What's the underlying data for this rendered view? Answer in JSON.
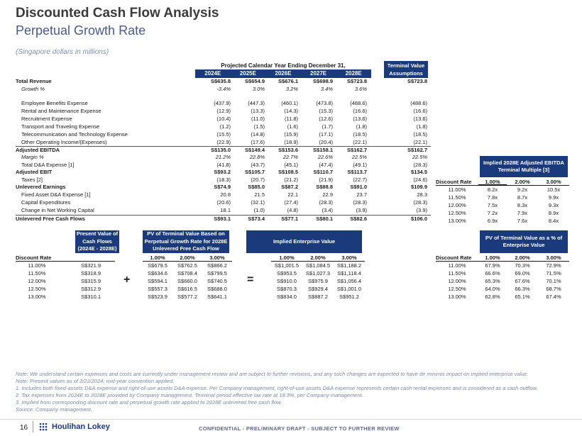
{
  "title": "Discounted Cash Flow Analysis",
  "subtitle": "Perpetual Growth Rate",
  "unit_note": "(Singapore dollars in millions)",
  "projection_header": "Projected Calendar Year Ending December 31,",
  "years": [
    "2024E",
    "2025E",
    "2026E",
    "2027E",
    "2028E"
  ],
  "tv_header": "Terminal Value Assumptions",
  "rows": [
    {
      "label": "Total Revenue",
      "vals": [
        "S$635.8",
        "S$654.9",
        "S$676.1",
        "S$698.9",
        "S$723.8"
      ],
      "tv": "S$723.8"
    },
    {
      "label": "Growth %",
      "vals": [
        "-3.4%",
        "3.0%",
        "3.2%",
        "3.4%",
        "3.6%"
      ],
      "tv": ""
    },
    {
      "label": "Employee Benefits Expense",
      "vals": [
        "(437.9)",
        "(447.3)",
        "(460.1)",
        "(473.8)",
        "(488.6)"
      ],
      "tv": "(488.6)"
    },
    {
      "label": "Rental and Maintenance Expense",
      "vals": [
        "(12.9)",
        "(13.3)",
        "(14.3)",
        "(15.3)",
        "(16.6)"
      ],
      "tv": "(16.6)"
    },
    {
      "label": "Recruitment Expense",
      "vals": [
        "(10.4)",
        "(11.0)",
        "(11.8)",
        "(12.6)",
        "(13.6)"
      ],
      "tv": "(13.6)"
    },
    {
      "label": "Transport and Traveling Expense",
      "vals": [
        "(1.2)",
        "(1.5)",
        "(1.6)",
        "(1.7)",
        "(1.8)"
      ],
      "tv": "(1.8)"
    },
    {
      "label": "Telecommunication and Technology Expense",
      "vals": [
        "(15.5)",
        "(14.8)",
        "(15.9)",
        "(17.1)",
        "(18.5)"
      ],
      "tv": "(18.5)"
    },
    {
      "label": "Other Operating Income/(Expenses)",
      "vals": [
        "(22.9)",
        "(17.6)",
        "(18.9)",
        "(20.4)",
        "(22.1)"
      ],
      "tv": "(22.1)"
    },
    {
      "label": "Adjusted EBITDA",
      "vals": [
        "S$135.0",
        "S$149.4",
        "S$153.6",
        "S$158.1",
        "S$162.7"
      ],
      "tv": "S$162.7"
    },
    {
      "label": "Margin %",
      "vals": [
        "21.2%",
        "22.8%",
        "22.7%",
        "22.6%",
        "22.5%"
      ],
      "tv": "22.5%"
    },
    {
      "label": "Total D&A Expense [1]",
      "vals": [
        "(41.8)",
        "(43.7)",
        "(45.1)",
        "(47.4)",
        "(49.1)"
      ],
      "tv": "(28.3)"
    },
    {
      "label": "Adjusted EBIT",
      "vals": [
        "S$93.2",
        "S$105.7",
        "S$108.5",
        "S$110.7",
        "S$113.7"
      ],
      "tv": "$134.5"
    },
    {
      "label": "Taxes [2]",
      "vals": [
        "(18.3)",
        "(20.7)",
        "(21.2)",
        "(21.9)",
        "(22.7)"
      ],
      "tv": "(24.6)"
    },
    {
      "label": "Unlevered Earnings",
      "vals": [
        "S$74.9",
        "S$85.0",
        "S$87.2",
        "S$88.8",
        "S$91.0"
      ],
      "tv": "$109.9"
    },
    {
      "label": "Fixed Asset D&A Expense [1]",
      "vals": [
        "20.8",
        "21.5",
        "22.1",
        "22.9",
        "23.7"
      ],
      "tv": "28.3"
    },
    {
      "label": "Capital Expenditures",
      "vals": [
        "(20.6)",
        "(32.1)",
        "(27.4)",
        "(28.3)",
        "(28.3)"
      ],
      "tv": "(28.3)"
    },
    {
      "label": "Change in Net Working Capital",
      "vals": [
        "18.1",
        "(1.0)",
        "(4.8)",
        "(3.4)",
        "(3.9)"
      ],
      "tv": "(3.9)"
    },
    {
      "label": "Unlevered Free Cash Flows",
      "vals": [
        "S$93.1",
        "S$73.4",
        "S$77.1",
        "S$80.1",
        "S$82.6"
      ],
      "tv": "$106.0"
    }
  ],
  "implied_multiple": {
    "header": "Implied 2028E Adjusted EBITDA Terminal Multiple [3]",
    "label": "Discount Rate",
    "cols": [
      "1.00%",
      "2.00%",
      "3.00%"
    ],
    "rates": [
      "11.00%",
      "11.50%",
      "12.00%",
      "12.50%",
      "13.00%"
    ],
    "values": [
      [
        "8.2x",
        "9.2x",
        "10.5x"
      ],
      [
        "7.8x",
        "8.7x",
        "9.9x"
      ],
      [
        "7.5x",
        "8.3x",
        "9.3x"
      ],
      [
        "7.2x",
        "7.9x",
        "8.9x"
      ],
      [
        "6.9x",
        "7.6x",
        "8.4x"
      ]
    ]
  },
  "pv_cf": {
    "header": "Present Value of Cash Flows (2024E - 2028E)",
    "label": "Discount Rate",
    "rates": [
      "11.00%",
      "11.50%",
      "12.00%",
      "12.50%",
      "13.00%"
    ],
    "values": [
      "S$321.9",
      "S$318.9",
      "S$315.9",
      "S$312.9",
      "S$310.1"
    ]
  },
  "pv_tv": {
    "header": "PV of Terminal Value Based on Perpetual Growth Rate for 2028E Unlevered Free Cash Flow",
    "cols": [
      "1.00%",
      "2.00%",
      "3.00%"
    ],
    "values": [
      [
        "S$679.5",
        "S$762.5",
        "S$866.2"
      ],
      [
        "S$634.6",
        "S$708.4",
        "S$799.5"
      ],
      [
        "S$594.1",
        "S$660.0",
        "S$740.5"
      ],
      [
        "S$557.3",
        "S$616.5",
        "S$688.0"
      ],
      [
        "S$523.9",
        "S$577.2",
        "S$641.1"
      ]
    ]
  },
  "iev": {
    "header": "Implied Enterprise Value",
    "cols": [
      "1.00%",
      "2.00%",
      "3.00%"
    ],
    "values": [
      [
        "S$1,001.5",
        "S$1,084.5",
        "S$1,188.2"
      ],
      [
        "S$953.5",
        "S$1,027.3",
        "S$1,118.4"
      ],
      [
        "S$910.0",
        "S$975.9",
        "S$1,056.4"
      ],
      [
        "S$870.3",
        "S$929.4",
        "S$1,001.0"
      ],
      [
        "S$834.0",
        "S$887.2",
        "S$951.2"
      ]
    ]
  },
  "pv_tv_pct": {
    "header": "PV of Terminal Value as a % of Enterprise Value",
    "label": "Discount Rate",
    "cols": [
      "1.00%",
      "2.00%",
      "3.00%"
    ],
    "rates": [
      "11.00%",
      "11.50%",
      "12.00%",
      "12.50%",
      "13.00%"
    ],
    "values": [
      [
        "67.9%",
        "70.3%",
        "72.9%"
      ],
      [
        "66.6%",
        "69.0%",
        "71.5%"
      ],
      [
        "65.3%",
        "67.6%",
        "70.1%"
      ],
      [
        "64.0%",
        "66.3%",
        "68.7%"
      ],
      [
        "62.8%",
        "65.1%",
        "67.4%"
      ]
    ]
  },
  "ops": {
    "plus": "+",
    "equals": "="
  },
  "notes": [
    "Note: We understand certain expenses and costs are currently under management review and are subject to further revisions, and any such changes are expected to have de minimis impact on implied enterprise value.",
    "Note: Present values as of 2/22/2024; mid-year convention applied.",
    "1.  Includes both fixed-assets D&A expense and right-of-use assets D&A expense. Per Company management, right-of-use assets D&A expense represents certain cash rental expenses and is considered as a cash outflow.",
    "2.  Tax expenses from 2024E to 2028E provided by Company management. Terminal period effective tax rate at 18.3%, per Company management.",
    "3.  Implied from corresponding discount rate and perpetual growth rate applied to 2028E unlevered free cash flow.",
    "Source: Company management."
  ],
  "footer": {
    "page_number": "16",
    "logo_text": "Houlihan Lokey",
    "confidential": "CONFIDENTIAL - PRELIMINARY DRAFT - SUBJECT TO FURTHER REVIEW"
  }
}
